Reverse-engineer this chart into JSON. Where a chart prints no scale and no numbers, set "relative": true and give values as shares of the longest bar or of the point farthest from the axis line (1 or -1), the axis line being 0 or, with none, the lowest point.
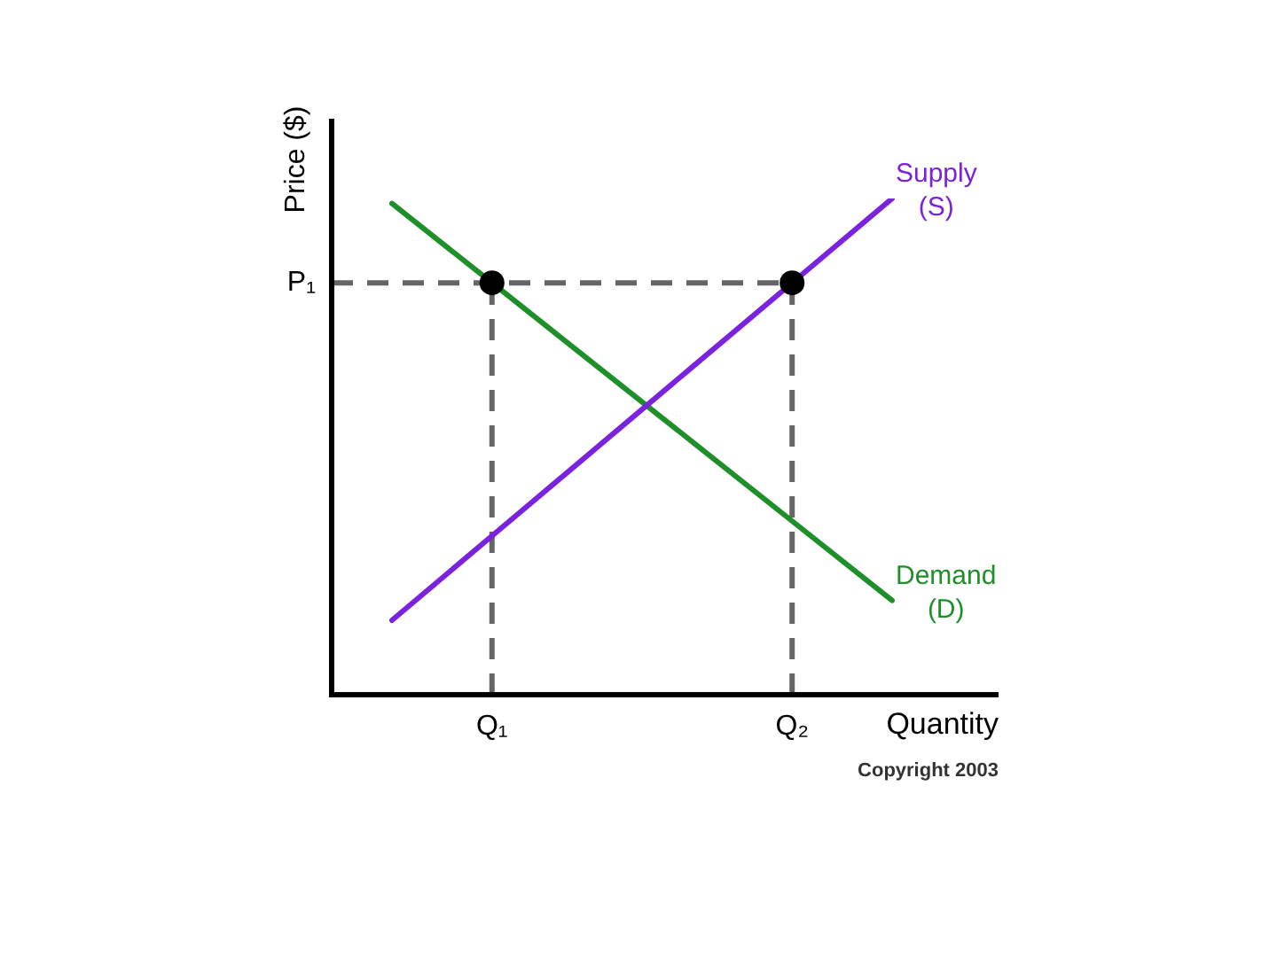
{
  "chart_data": {
    "type": "line",
    "relative": true,
    "xlabel": "Quantity",
    "ylabel": "Price ($)",
    "legend": false,
    "marker": "none",
    "categories": [
      null,
      "Q₁",
      null,
      null,
      "Q₂",
      null
    ],
    "series": [
      {
        "name": "Supply (S)",
        "color": "#7a22e0",
        "values": [
          0.15,
          0.32,
          0.49,
          0.66,
          0.83,
          1
        ]
      },
      {
        "name": "Demand (D)",
        "color": "#1f8f2a",
        "values": [
          0.99,
          0.83,
          0.67,
          0.51,
          0.35,
          0.19
        ]
      },
      {
        "type": "scatter",
        "marker": "circle",
        "color": "#000000",
        "values": [
          null,
          0.83,
          null,
          null,
          0.83,
          null
        ]
      }
    ],
    "ref_lines": [
      {
        "axis": "y",
        "value": 0.83,
        "label": "P₁",
        "color": "#666666",
        "line_style": "dashed"
      },
      {
        "axis": "x",
        "value": "Q₁",
        "color": "#666666",
        "line_style": "dashed"
      },
      {
        "axis": "x",
        "value": "Q₂",
        "color": "#666666",
        "line_style": "dashed"
      }
    ],
    "annotations": [
      "Copyright 2003"
    ]
  }
}
